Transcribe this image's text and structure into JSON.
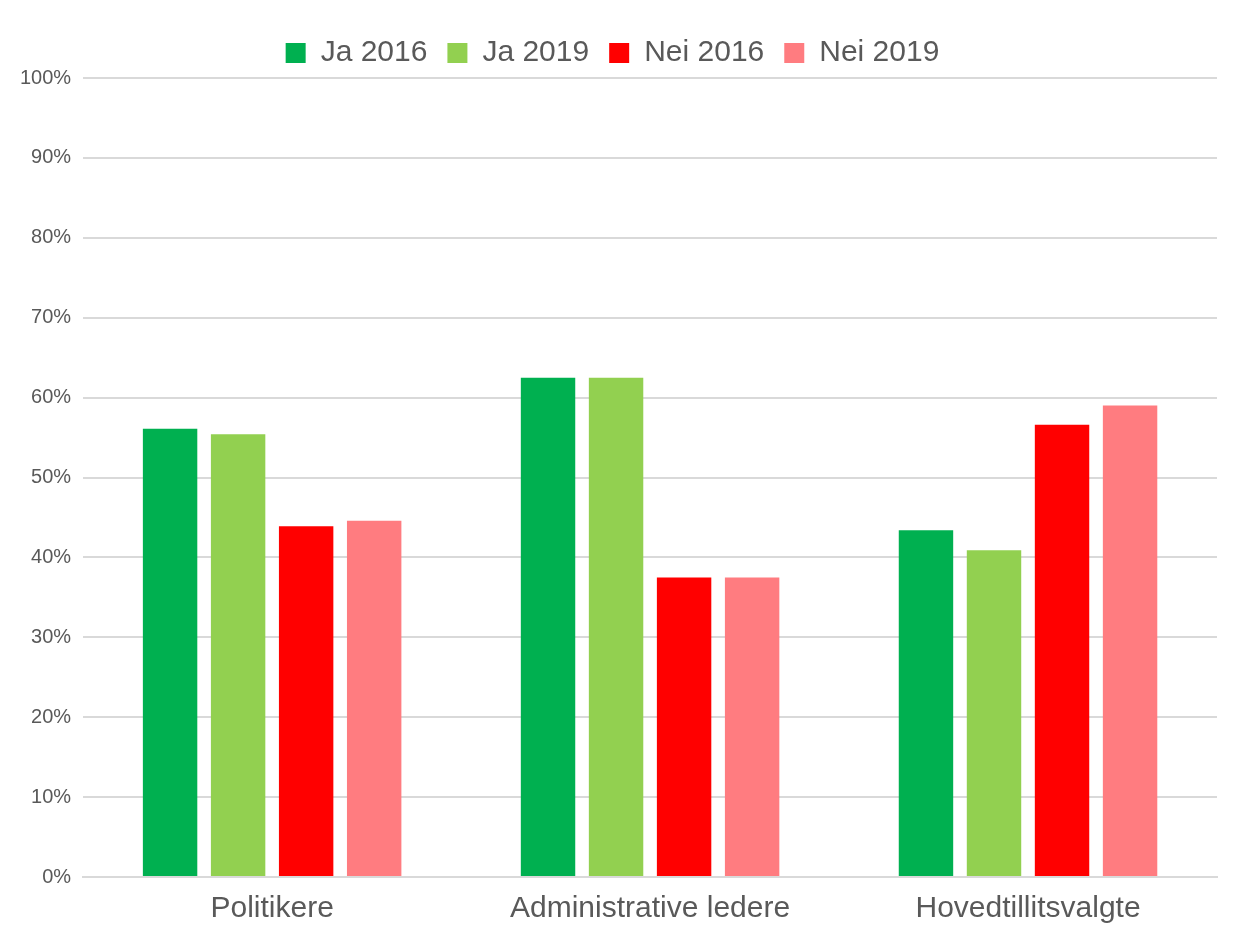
{
  "chart_data": {
    "type": "bar",
    "categories": [
      "Politikere",
      "Administrative ledere",
      "Hovedtillitsvalgte"
    ],
    "series": [
      {
        "name": "Ja 2016",
        "color": "#00b050",
        "values": [
          56.1,
          62.5,
          43.4
        ]
      },
      {
        "name": "Ja 2019",
        "color": "#92d050",
        "values": [
          55.4,
          62.5,
          40.9
        ]
      },
      {
        "name": "Nei 2016",
        "color": "#ff0000",
        "values": [
          43.9,
          37.5,
          56.6
        ]
      },
      {
        "name": "Nei 2019",
        "color": "#ff7c80",
        "values": [
          44.6,
          37.5,
          59.0
        ]
      }
    ],
    "ylim": [
      0,
      100
    ],
    "yticks": [
      {
        "value": 0,
        "label": "0%"
      },
      {
        "value": 10,
        "label": "10%"
      },
      {
        "value": 20,
        "label": "20%"
      },
      {
        "value": 30,
        "label": "30%"
      },
      {
        "value": 40,
        "label": "40%"
      },
      {
        "value": 50,
        "label": "50%"
      },
      {
        "value": 60,
        "label": "60%"
      },
      {
        "value": 70,
        "label": "70%"
      },
      {
        "value": 80,
        "label": "80%"
      },
      {
        "value": 90,
        "label": "90%"
      },
      {
        "value": 100,
        "label": "100%"
      }
    ],
    "grid": "y",
    "legend": "top"
  }
}
